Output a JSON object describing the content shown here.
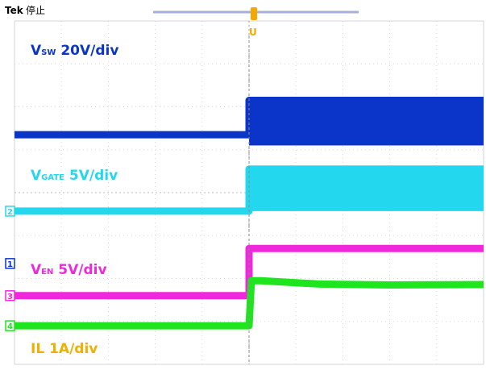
{
  "header": {
    "brand": "Tek",
    "status": "停止",
    "trigger_marker": "U"
  },
  "chart_data": {
    "type": "line",
    "title": "",
    "xlabel": "",
    "ylabel": "",
    "grid": true,
    "grid_divisions": {
      "x": 10,
      "y": 8
    },
    "trigger_time_div": 5.0,
    "series": [
      {
        "id": "vsw",
        "name": "VSW 20V/div",
        "label_main": "V",
        "label_sub": "SW",
        "label_scale": " 20V/div",
        "color": "#0a35c8",
        "channel_marker": "1",
        "ground_div": 2.35,
        "x": [
          0,
          5.0,
          5.0,
          10
        ],
        "y": [
          5.35,
          5.35,
          6.15,
          6.15
        ],
        "switching_band": {
          "from_x": 5.0,
          "to_x": 10,
          "low_div": 5.1,
          "high_div": 6.15
        }
      },
      {
        "id": "vgate",
        "name": "VGATE 5V/div",
        "label_main": "V",
        "label_sub": "GATE",
        "label_scale": " 5V/div",
        "color": "#23d8ee",
        "channel_marker": "2",
        "ground_div": 3.57,
        "x": [
          0,
          5.0,
          5.0,
          10
        ],
        "y": [
          3.57,
          3.57,
          4.55,
          4.55
        ],
        "switching_band": {
          "from_x": 5.0,
          "to_x": 10,
          "low_div": 3.57,
          "high_div": 4.55
        }
      },
      {
        "id": "ven",
        "name": "VEN 5V/div",
        "label_main": "V",
        "label_sub": "EN",
        "label_scale": " 5V/div",
        "color": "#f028dc",
        "channel_marker": "3",
        "ground_div": 1.6,
        "x": [
          0,
          5.0,
          5.0,
          10
        ],
        "y": [
          1.6,
          1.6,
          2.7,
          2.7
        ]
      },
      {
        "id": "il",
        "name": "IL 1A/div",
        "label_main": "IL",
        "label_sub": "",
        "label_scale": " 1A/div",
        "color": "#1ee51e",
        "channel_marker": "4",
        "ground_div": 0.9,
        "label_color": "#f0b000",
        "x": [
          0,
          5.0,
          5.05,
          5.25,
          6.5,
          8.0,
          10
        ],
        "y": [
          0.9,
          0.9,
          1.95,
          1.95,
          1.87,
          1.85,
          1.86
        ]
      }
    ]
  }
}
